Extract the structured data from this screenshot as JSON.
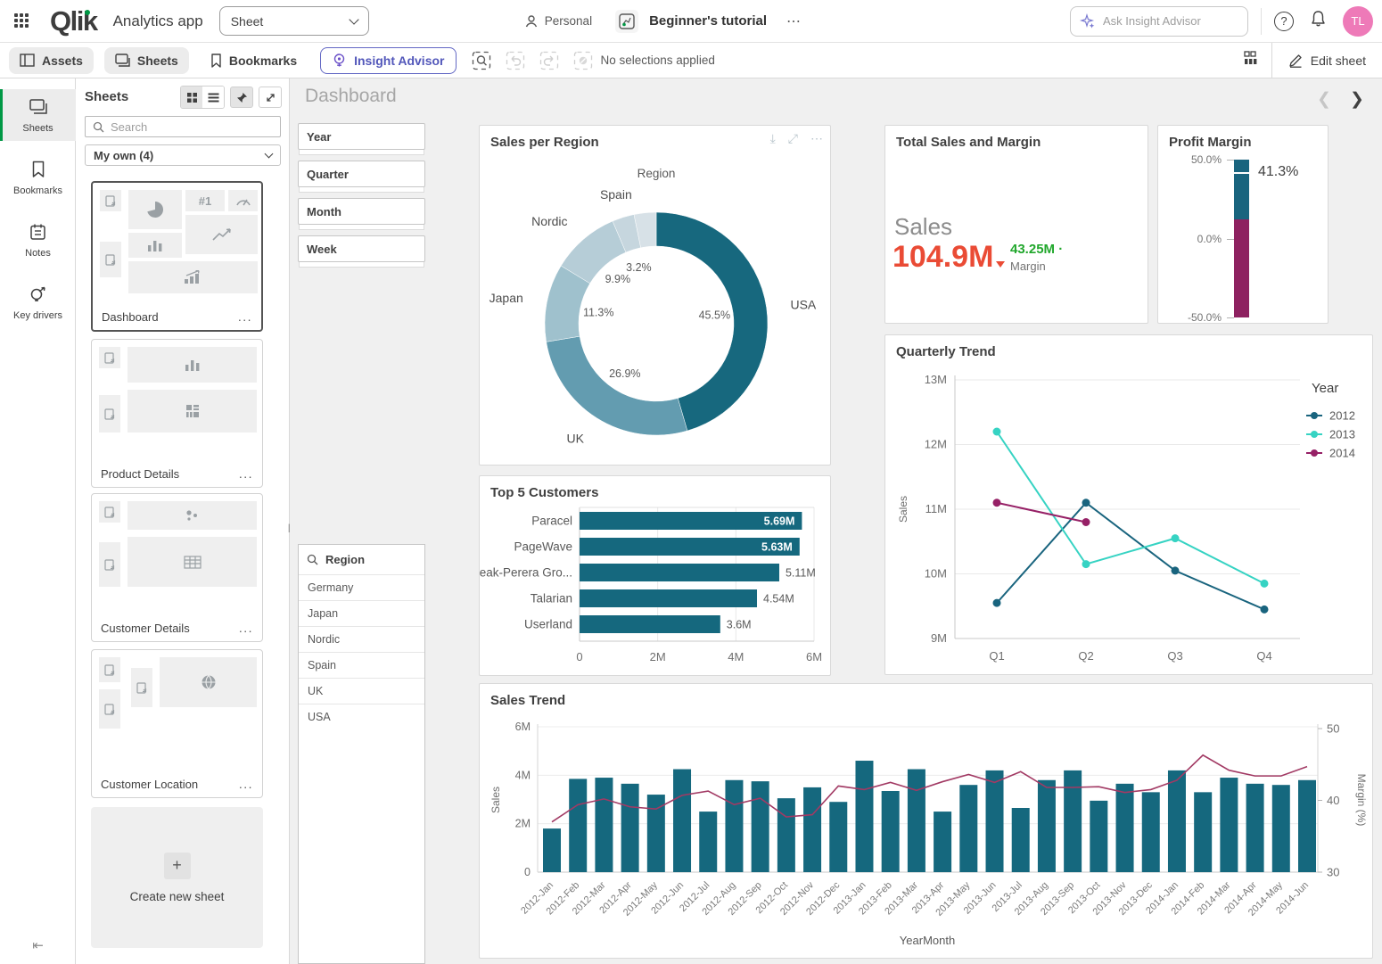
{
  "topbar": {
    "logo": "Qlik",
    "app_name": "Analytics app",
    "sheet_selector": "Sheet",
    "space_label": "Personal",
    "app_title": "Beginner's tutorial",
    "ask_placeholder": "Ask Insight Advisor",
    "avatar_initials": "TL"
  },
  "toolbar": {
    "assets": "Assets",
    "sheets": "Sheets",
    "bookmarks": "Bookmarks",
    "insight_advisor": "Insight Advisor",
    "no_selections": "No selections applied",
    "edit_sheet": "Edit sheet"
  },
  "left_rail": {
    "items": [
      {
        "label": "Sheets",
        "active": true
      },
      {
        "label": "Bookmarks",
        "active": false
      },
      {
        "label": "Notes",
        "active": false
      },
      {
        "label": "Key drivers",
        "active": false
      }
    ]
  },
  "sheets_panel": {
    "title": "Sheets",
    "search_placeholder": "Search",
    "filter_value": "My own (4)",
    "cards": [
      {
        "title": "Dashboard",
        "selected": true
      },
      {
        "title": "Product Details",
        "selected": false
      },
      {
        "title": "Customer Details",
        "selected": false
      },
      {
        "title": "Customer Location",
        "selected": false
      }
    ],
    "create_new": "Create new sheet",
    "more_glyph": "..."
  },
  "sheet": {
    "title": "Dashboard",
    "filters": [
      "Year",
      "Quarter",
      "Month",
      "Week"
    ],
    "region_listbox": {
      "title": "Region",
      "items": [
        "Germany",
        "Japan",
        "Nordic",
        "Spain",
        "UK",
        "USA"
      ]
    }
  },
  "kpi": {
    "title": "Total Sales and Margin",
    "sales_label": "Sales",
    "sales_value": "104.9M",
    "margin_value": "43.25M ·",
    "margin_label": "Margin"
  },
  "chart_data": [
    {
      "id": "sales_per_region",
      "type": "donut",
      "title": "Sales per Region",
      "dimension_label": "Region",
      "slices": [
        {
          "label": "USA",
          "value": 45.5,
          "percent_label": "45.5%",
          "color": "#17687e",
          "labeled": true
        },
        {
          "label": "UK",
          "value": 26.9,
          "percent_label": "26.9%",
          "color": "#639cb0",
          "labeled": true
        },
        {
          "label": "Japan",
          "value": 11.3,
          "percent_label": "11.3%",
          "color": "#9fc1cd",
          "labeled": true
        },
        {
          "label": "Nordic",
          "value": 9.9,
          "percent_label": "9.9%",
          "color": "#b6cdd7",
          "labeled": true
        },
        {
          "label": "Spain",
          "value": 3.2,
          "percent_label": "3.2%",
          "color": "#c6d6de",
          "labeled": true
        },
        {
          "label": "Germany",
          "value": 3.2,
          "percent_label": "",
          "color": "#d7e1e7",
          "labeled": false
        }
      ]
    },
    {
      "id": "profit_margin",
      "type": "gauge",
      "title": "Profit Margin",
      "value": 41.3,
      "value_label": "41.3%",
      "min": -50,
      "max": 50,
      "ticks": [
        {
          "label": "50.0%",
          "value": 50
        },
        {
          "label": "0.0%",
          "value": 0
        },
        {
          "label": "-50.0%",
          "value": -50
        }
      ],
      "segments": [
        {
          "from": 12.4,
          "to": 50,
          "color": "#19647e"
        },
        {
          "from": -50,
          "to": 12.4,
          "color": "#8e2160"
        }
      ]
    },
    {
      "id": "quarterly_trend",
      "type": "line",
      "title": "Quarterly Trend",
      "categories": [
        "Q1",
        "Q2",
        "Q3",
        "Q4"
      ],
      "ylabel": "Sales",
      "ylim": [
        9,
        13
      ],
      "yticks": [
        "9M",
        "10M",
        "11M",
        "12M",
        "13M"
      ],
      "legend_title": "Year",
      "legend_position": "right",
      "grid": true,
      "series": [
        {
          "name": "2012",
          "color": "#19647e",
          "values": [
            9.55,
            11.1,
            10.05,
            9.45
          ]
        },
        {
          "name": "2013",
          "color": "#36d3c3",
          "values": [
            12.2,
            10.15,
            10.55,
            9.85
          ]
        },
        {
          "name": "2014",
          "color": "#962066",
          "values": [
            11.1,
            10.8,
            null,
            null
          ]
        }
      ]
    },
    {
      "id": "top5_customers",
      "type": "bar",
      "title": "Top 5 Customers",
      "categories": [
        "Paracel",
        "PageWave",
        "Deak-Perera Gro...",
        "Talarian",
        "Userland"
      ],
      "values": [
        5.69,
        5.63,
        5.11,
        4.54,
        3.6
      ],
      "value_labels": [
        "5.69M",
        "5.63M",
        "5.11M",
        "4.54M",
        "3.6M"
      ],
      "xlim": [
        0,
        6
      ],
      "xticks": [
        "0",
        "2M",
        "4M",
        "6M"
      ],
      "bar_color": "#15687e"
    },
    {
      "id": "sales_trend",
      "type": "combo",
      "title": "Sales Trend",
      "xlabel": "YearMonth",
      "ylabel_left": "Sales",
      "ylabel_right": "Margin (%)",
      "ylim_left": [
        0,
        6
      ],
      "yticks_left": [
        "0",
        "2M",
        "4M",
        "6M"
      ],
      "ylim_right": [
        30,
        50
      ],
      "yticks_right": [
        "30",
        "40",
        "50"
      ],
      "bar_color": "#15687e",
      "line_color": "#a23a64",
      "categories": [
        "2012-Jan",
        "2012-Feb",
        "2012-Mar",
        "2012-Apr",
        "2012-May",
        "2012-Jun",
        "2012-Jul",
        "2012-Aug",
        "2012-Sep",
        "2012-Oct",
        "2012-Nov",
        "2012-Dec",
        "2013-Jan",
        "2013-Feb",
        "2013-Mar",
        "2013-Apr",
        "2013-May",
        "2013-Jun",
        "2013-Jul",
        "2013-Aug",
        "2013-Sep",
        "2013-Oct",
        "2013-Nov",
        "2013-Dec",
        "2014-Jan",
        "2014-Feb",
        "2014-Mar",
        "2014-Apr",
        "2014-May",
        "2014-Jun"
      ],
      "bars_sales_M": [
        1.8,
        3.85,
        3.9,
        3.65,
        3.2,
        4.25,
        2.5,
        3.8,
        3.75,
        3.05,
        3.5,
        2.9,
        4.6,
        3.35,
        4.25,
        2.5,
        3.6,
        4.2,
        2.65,
        3.8,
        4.2,
        2.95,
        3.65,
        3.3,
        4.2,
        3.3,
        3.9,
        3.65,
        3.6,
        3.8
      ],
      "line_margin_pct": [
        37,
        39.4,
        40.2,
        39.1,
        38.8,
        40.7,
        41.3,
        39.4,
        40.3,
        37.7,
        38,
        42,
        41.5,
        42.5,
        41.4,
        42.6,
        43.6,
        42.5,
        44,
        41.8,
        41.8,
        41.9,
        41.1,
        41.5,
        42.8,
        46.3,
        44.2,
        43.4,
        43.4,
        44.7
      ]
    }
  ]
}
